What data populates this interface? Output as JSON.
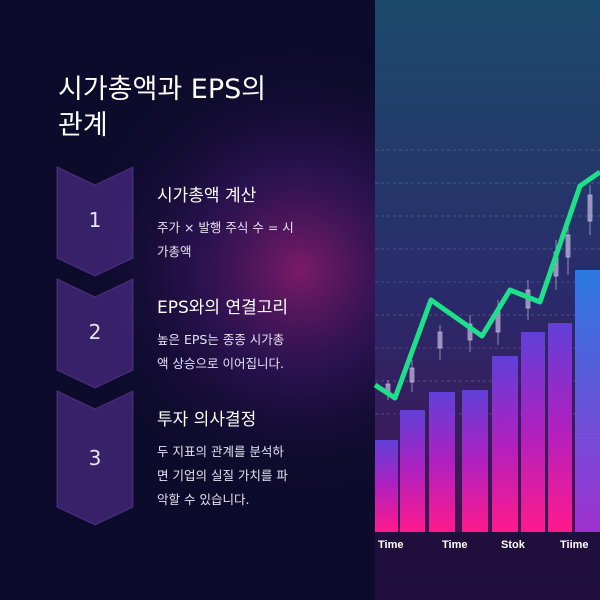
{
  "title_lines": [
    "시가총액과 EPS의",
    "관계"
  ],
  "steps": [
    {
      "number": 1,
      "heading": "시가총액 계산",
      "lines": [
        "주가 × 발행 주식 수 = 시",
        "가총액"
      ]
    },
    {
      "number": 2,
      "heading": "EPS와의 연결고리",
      "lines": [
        "높은 EPS는 종종 시가총",
        "액 상승으로 이어집니다."
      ]
    },
    {
      "number": 3,
      "heading": "투자 의사결정",
      "lines": [
        "두 지표의 관계를 분석하",
        "면 기업의 실질 가치를 파",
        "악할 수 있습니다."
      ]
    }
  ],
  "image_labels": [
    "Time",
    "Time",
    "Stok",
    "Tiime"
  ]
}
